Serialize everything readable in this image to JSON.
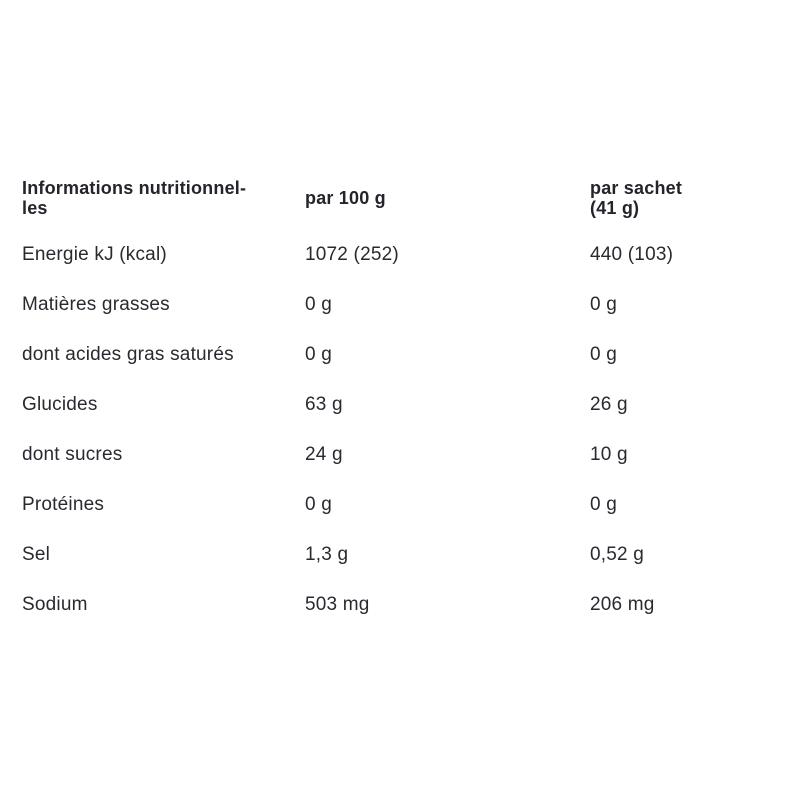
{
  "page": {
    "background_color": "#ffffff",
    "text_color": "#2a2930"
  },
  "table": {
    "header": {
      "col1_line1": "Informations nutritionnel-",
      "col1_line2": "les",
      "col2": "par 100 g",
      "col3": "par sachet (41 g)"
    },
    "rows": [
      {
        "label": "Energie kJ (kcal)",
        "per_100g": "1072 (252)",
        "per_sachet": "440 (103)"
      },
      {
        "label": "Matières grasses",
        "per_100g": "0 g",
        "per_sachet": "0 g"
      },
      {
        "label": "dont acides gras saturés",
        "per_100g": "0 g",
        "per_sachet": "0 g"
      },
      {
        "label": "Glucides",
        "per_100g": "63 g",
        "per_sachet": "26 g"
      },
      {
        "label": "dont sucres",
        "per_100g": "24 g",
        "per_sachet": "10 g"
      },
      {
        "label": "Protéines",
        "per_100g": "0 g",
        "per_sachet": "0 g"
      },
      {
        "label": "Sel",
        "per_100g": "1,3 g",
        "per_sachet": "0,52 g"
      },
      {
        "label": "Sodium",
        "per_100g": "503 mg",
        "per_sachet": "206 mg"
      }
    ]
  }
}
